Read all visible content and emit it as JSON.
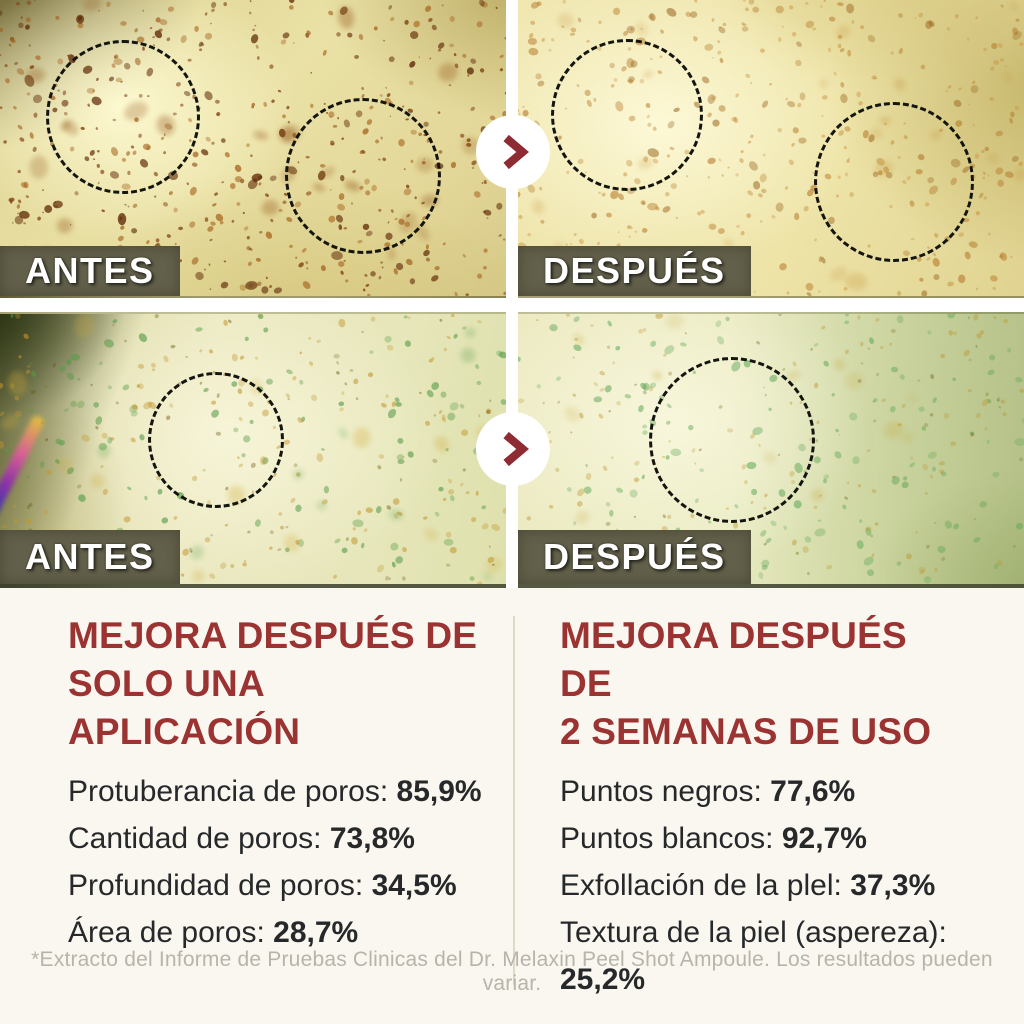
{
  "panels": [
    {
      "id": "before-1",
      "label": "ANTES"
    },
    {
      "id": "after-1",
      "label": "DESPUÉS"
    },
    {
      "id": "before-2",
      "label": "ANTES"
    },
    {
      "id": "after-2",
      "label": "DESPUÉS"
    }
  ],
  "icons": {
    "next_arrow": "chevron-right"
  },
  "results": {
    "left": {
      "title_lines": [
        "MEJORA DESPUÉS DE",
        "SOLO UNA APLICACIÓN"
      ],
      "stats": [
        {
          "label": "Protuberancia de poros:",
          "value": "85,9%"
        },
        {
          "label": "Cantidad de poros:",
          "value": "73,8%"
        },
        {
          "label": "Profundidad de poros:",
          "value": "34,5%"
        },
        {
          "label": "Área de poros:",
          "value": "28,7%"
        }
      ]
    },
    "right": {
      "title_lines": [
        "MEJORA DESPUÉS DE",
        "2 SEMANAS DE USO"
      ],
      "stats": [
        {
          "label": "Puntos negros:",
          "value": "77,6%"
        },
        {
          "label": "Puntos blancos:",
          "value": "92,7%"
        },
        {
          "label": "Exfollación de la plel:",
          "value": "37,3%"
        },
        {
          "label": "Textura de la piel (aspereza):",
          "value": "25,2%"
        }
      ]
    }
  },
  "footnote": "*Extracto del Informe de Pruebas Clinicas del Dr. Melaxin Peel Shot Ampoule. Los resultados pueden variar.",
  "colors": {
    "accent_red": "#9a3332",
    "arrow_red": "#8e2b33",
    "ink": "#26282a",
    "muted_gray": "#b9b4a9",
    "cream_bg": "#faf7f0",
    "badge_olive": "#62604a",
    "badge_text": "#ffffff",
    "divider": "#ddd8c8",
    "circle_black": "#15150f"
  }
}
